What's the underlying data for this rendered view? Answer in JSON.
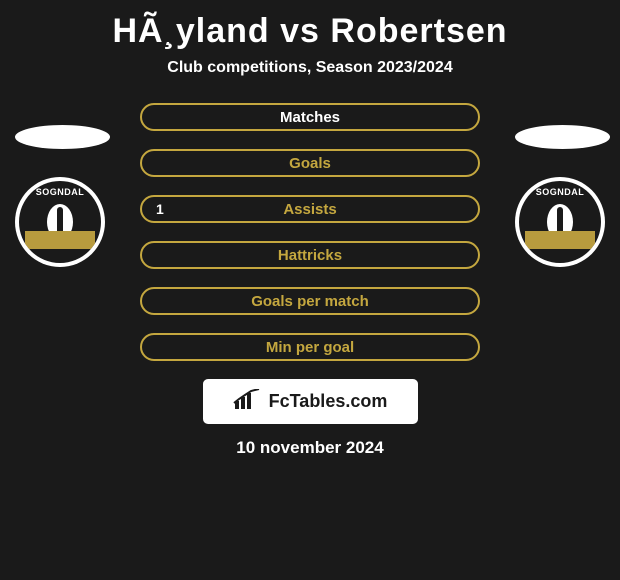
{
  "title": "HÃ¸yland vs Robertsen",
  "subtitle": "Club competitions, Season 2023/2024",
  "date": "10 november 2024",
  "site_logo": "FcTables.com",
  "club": {
    "name": "SOGNDAL",
    "ribbon_color": "#b89b3e"
  },
  "stats": [
    {
      "label": "Matches",
      "border_color": "#c4a73f",
      "text_color": "#ffffff",
      "left_val": "",
      "right_val": ""
    },
    {
      "label": "Goals",
      "border_color": "#c4a73f",
      "text_color": "#c4a73f",
      "left_val": "",
      "right_val": ""
    },
    {
      "label": "Assists",
      "border_color": "#c4a73f",
      "text_color": "#c4a73f",
      "left_val": "1",
      "right_val": ""
    },
    {
      "label": "Hattricks",
      "border_color": "#c4a73f",
      "text_color": "#c4a73f",
      "left_val": "",
      "right_val": ""
    },
    {
      "label": "Goals per match",
      "border_color": "#c4a73f",
      "text_color": "#c4a73f",
      "left_val": "",
      "right_val": ""
    },
    {
      "label": "Min per goal",
      "border_color": "#c4a73f",
      "text_color": "#c4a73f",
      "left_val": "",
      "right_val": ""
    }
  ],
  "colors": {
    "background": "#1a1a1a",
    "accent": "#c4a73f",
    "white": "#ffffff"
  }
}
